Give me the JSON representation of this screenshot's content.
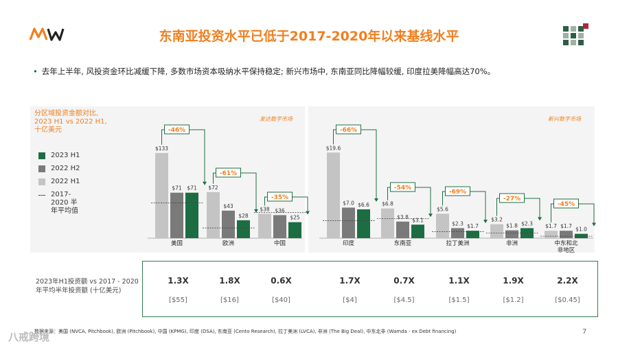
{
  "title": "东南亚投资水平已低于2017-2020年以来基线水平",
  "bullet": "去年上半年, 风投资金环比减缓下降, 多数市场资本吸纳水平保持稳定; 新兴市场中, 东南亚同比降幅较缓, 印度拉美降幅高达70%。",
  "legend": {
    "title": "分区域投资金额对比, 2023 H1 vs 2022 H1, 十亿美元",
    "items": [
      {
        "label": "2023 H1",
        "color": "#1c6e42"
      },
      {
        "label": "2022 H2",
        "color": "#7a7a7a"
      },
      {
        "label": "2022 H1",
        "color": "#c4c4c4"
      },
      {
        "label": "2017-2020 半年平均值",
        "color": "#444444"
      }
    ]
  },
  "panels": {
    "developed_label": "发达数字市场",
    "emerging_label": "新兴数字市场"
  },
  "chart_data": {
    "type": "bar",
    "title": "分区域投资金额对比, 2023 H1 vs 2022 H1, 十亿美元",
    "series_names": [
      "2022 H1",
      "2022 H2",
      "2023 H1"
    ],
    "groups": [
      {
        "name": "美国",
        "panel": "developed",
        "ymax": 150,
        "values": [
          133,
          71,
          71
        ],
        "labels": [
          "$133",
          "$71",
          "$71"
        ],
        "avg": 55,
        "change": "-46%"
      },
      {
        "name": "欧洲",
        "panel": "developed",
        "ymax": 150,
        "values": [
          72,
          43,
          28
        ],
        "labels": [
          "$72",
          "$43",
          "$28"
        ],
        "avg": 16,
        "change": "-61%"
      },
      {
        "name": "中国",
        "panel": "developed",
        "ymax": 150,
        "values": [
          38,
          36,
          25
        ],
        "labels": [
          "$38",
          "$36",
          "$25"
        ],
        "avg": 40,
        "change": "-35%"
      },
      {
        "name": "印度",
        "panel": "emerging",
        "ymax": 22,
        "values": [
          19.6,
          7.0,
          6.6
        ],
        "labels": [
          "$19.6",
          "$7.0",
          "$6.6"
        ],
        "avg": 4,
        "change": "-66%"
      },
      {
        "name": "东南亚",
        "panel": "emerging",
        "ymax": 22,
        "values": [
          6.8,
          3.8,
          3.1
        ],
        "labels": [
          "$6.8",
          "$3.8",
          "$3.1"
        ],
        "avg": 4.5,
        "change": "-54%"
      },
      {
        "name": "拉丁美洲",
        "panel": "emerging",
        "ymax": 22,
        "values": [
          5.6,
          2.3,
          1.7
        ],
        "labels": [
          "$5.6",
          "$2.3",
          "$1.7"
        ],
        "avg": 1.5,
        "change": "-69%"
      },
      {
        "name": "非洲",
        "panel": "emerging",
        "ymax": 22,
        "values": [
          3.2,
          1.8,
          2.3
        ],
        "labels": [
          "$3.2",
          "$1.8",
          "$2.3"
        ],
        "avg": 1.2,
        "change": "-27%"
      },
      {
        "name": "中东和北非地区",
        "panel": "emerging",
        "ymax": 22,
        "values": [
          1.7,
          1.7,
          1.0
        ],
        "labels": [
          "$1.7",
          "$1.7",
          "$1.0"
        ],
        "avg": 0.45,
        "change": "-45%"
      }
    ]
  },
  "table": {
    "label": "2023年H1投资额 vs 2017 - 2020年平均半年投资额 (十亿美元)",
    "ratios": [
      "1.3X",
      "1.8X",
      "0.6X",
      "1.7X",
      "0.7X",
      "1.1X",
      "1.9X",
      "2.2X"
    ],
    "averages": [
      "[$55]",
      "[$16]",
      "[$40]",
      "[$4]",
      "[$4.5]",
      "[$1.5]",
      "[$1.2]",
      "[$0.45]"
    ]
  },
  "source": "数据来源：美国 (NVCA, Pitchbook), 欧洲 (Pitchbook), 中国 (KPMG), 印度 (DSA), 东南亚 (Cento Research), 拉丁美洲 (LVCA), 非洲 (The Big Deal), 中东北非 (Wamda - ex Debt financing)",
  "page_number": "7",
  "watermark": "八戒跨境",
  "colors": {
    "accent": "#f07f1e",
    "green": "#1c6e42",
    "dark_grey": "#7a7a7a",
    "light_grey": "#c4c4c4"
  }
}
